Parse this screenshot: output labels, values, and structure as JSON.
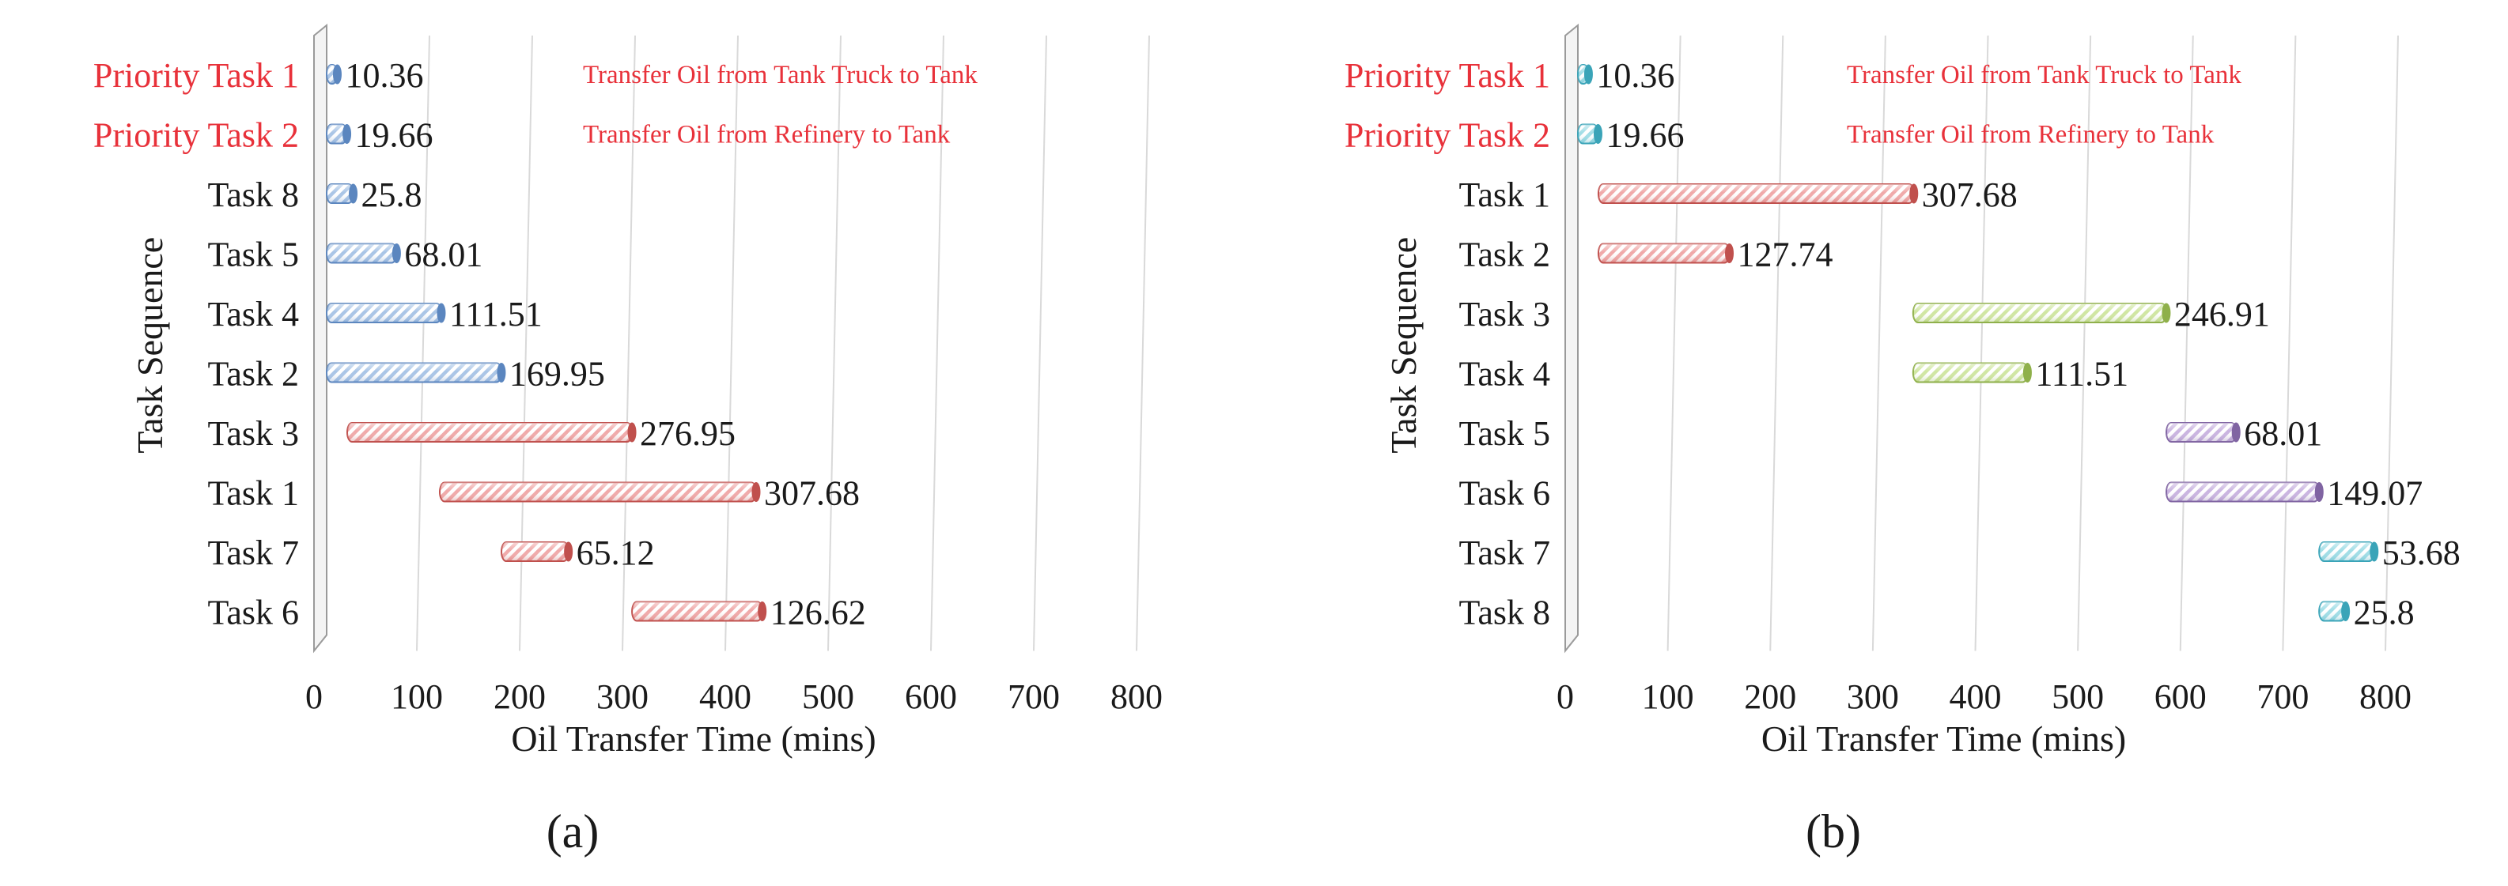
{
  "figure": {
    "colors": {
      "priority_label": "#e8313a",
      "text": "#1a1a1a",
      "grid": "#d9d9d9",
      "blue_bar": "#a8c4e6",
      "blue_stroke": "#5b86bf",
      "red_bar": "#f0a8a8",
      "red_stroke": "#c0504d",
      "green_bar": "#cfe6a1",
      "green_stroke": "#8fb04a",
      "purple_bar": "#c9b3e0",
      "purple_stroke": "#8064a2",
      "cyan_bar": "#9fdde6",
      "cyan_stroke": "#3aa4b8"
    }
  },
  "chart_data": [
    {
      "panel_label": "(a)",
      "type": "bar",
      "orientation": "horizontal",
      "xlabel": "Oil Transfer Time (mins)",
      "ylabel": "Task Sequence",
      "xlim": [
        0,
        800
      ],
      "xticks": [
        "0",
        "100",
        "200",
        "300",
        "400",
        "500",
        "600",
        "700",
        "800"
      ],
      "grid": true,
      "annotations": [
        "Transfer Oil from Tank Truck to Tank",
        "Transfer Oil from Refinery to Tank"
      ],
      "bars": [
        {
          "label": "Priority Task 1",
          "priority": true,
          "start": 0,
          "duration": 10.36,
          "value_label": "10.36",
          "color": "blue"
        },
        {
          "label": "Priority Task 2",
          "priority": true,
          "start": 0,
          "duration": 19.66,
          "value_label": "19.66",
          "color": "blue"
        },
        {
          "label": "Task 8",
          "priority": false,
          "start": 0,
          "duration": 25.8,
          "value_label": "25.8",
          "color": "blue"
        },
        {
          "label": "Task 5",
          "priority": false,
          "start": 0,
          "duration": 68.01,
          "value_label": "68.01",
          "color": "blue"
        },
        {
          "label": "Task 4",
          "priority": false,
          "start": 0,
          "duration": 111.51,
          "value_label": "111.51",
          "color": "blue"
        },
        {
          "label": "Task 2",
          "priority": false,
          "start": 0,
          "duration": 169.95,
          "value_label": "169.95",
          "color": "blue"
        },
        {
          "label": "Task 3",
          "priority": false,
          "start": 20,
          "duration": 276.95,
          "value_label": "276.95",
          "color": "red"
        },
        {
          "label": "Task 1",
          "priority": false,
          "start": 110,
          "duration": 307.68,
          "value_label": "307.68",
          "color": "red"
        },
        {
          "label": "Task 7",
          "priority": false,
          "start": 170,
          "duration": 65.12,
          "value_label": "65.12",
          "color": "red"
        },
        {
          "label": "Task 6",
          "priority": false,
          "start": 297,
          "duration": 126.62,
          "value_label": "126.62",
          "color": "red"
        }
      ]
    },
    {
      "panel_label": "(b)",
      "type": "bar",
      "orientation": "horizontal",
      "xlabel": "Oil Transfer Time (mins)",
      "ylabel": "Task Sequence",
      "xlim": [
        0,
        800
      ],
      "xticks": [
        "0",
        "100",
        "200",
        "300",
        "400",
        "500",
        "600",
        "700",
        "800"
      ],
      "grid": true,
      "annotations": [
        "Transfer Oil from Tank Truck to Tank",
        "Transfer Oil from Refinery to Tank"
      ],
      "bars": [
        {
          "label": "Priority Task 1",
          "priority": true,
          "start": 0,
          "duration": 10.36,
          "value_label": "10.36",
          "color": "cyan"
        },
        {
          "label": "Priority Task 2",
          "priority": true,
          "start": 0,
          "duration": 19.66,
          "value_label": "19.66",
          "color": "cyan"
        },
        {
          "label": "Task 1",
          "priority": false,
          "start": 20,
          "duration": 307.68,
          "value_label": "307.68",
          "color": "red"
        },
        {
          "label": "Task 2",
          "priority": false,
          "start": 20,
          "duration": 127.74,
          "value_label": "127.74",
          "color": "red"
        },
        {
          "label": "Task 3",
          "priority": false,
          "start": 327,
          "duration": 246.91,
          "value_label": "246.91",
          "color": "green"
        },
        {
          "label": "Task 4",
          "priority": false,
          "start": 327,
          "duration": 111.51,
          "value_label": "111.51",
          "color": "green"
        },
        {
          "label": "Task 5",
          "priority": false,
          "start": 574,
          "duration": 68.01,
          "value_label": "68.01",
          "color": "purple"
        },
        {
          "label": "Task 6",
          "priority": false,
          "start": 574,
          "duration": 149.07,
          "value_label": "149.07",
          "color": "purple"
        },
        {
          "label": "Task 7",
          "priority": false,
          "start": 723,
          "duration": 53.68,
          "value_label": "53.68",
          "color": "cyan"
        },
        {
          "label": "Task 8",
          "priority": false,
          "start": 723,
          "duration": 25.8,
          "value_label": "25.8",
          "color": "cyan"
        }
      ]
    }
  ]
}
